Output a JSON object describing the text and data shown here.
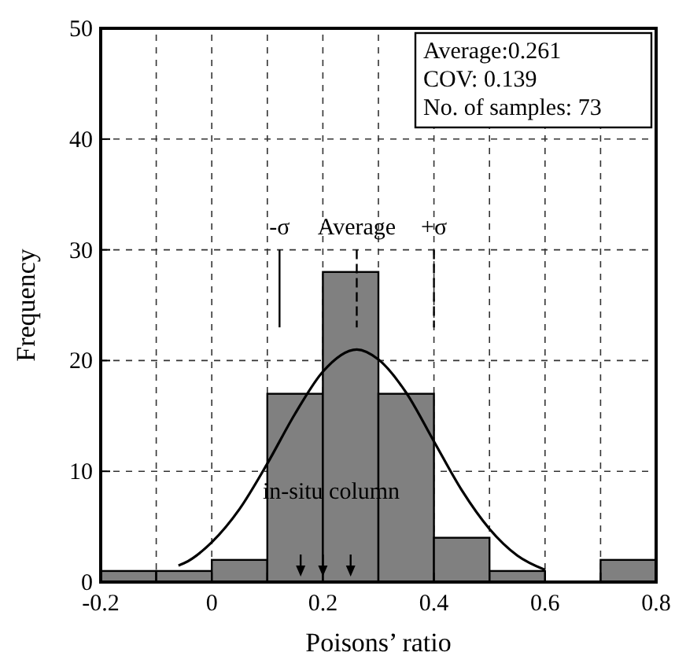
{
  "chart_data": {
    "type": "histogram",
    "xlabel": "Poisons’ ratio",
    "ylabel": "Frequency",
    "bins": [
      -0.2,
      -0.1,
      0,
      0.1,
      0.2,
      0.3,
      0.4,
      0.5,
      0.6,
      0.7,
      0.8
    ],
    "values": [
      1,
      1,
      2,
      17,
      28,
      17,
      4,
      1,
      0,
      2
    ],
    "color": "#808080",
    "series": [
      {
        "type": "line",
        "color": "#000000",
        "x": [
          -0.06,
          -0.05,
          0,
          0.05,
          0.1,
          0.15,
          0.2,
          0.261,
          0.3,
          0.35,
          0.4,
          0.45,
          0.5,
          0.55,
          0.6
        ],
        "values": [
          1.5,
          1.7,
          3.6,
          6.6,
          10.7,
          15.2,
          19,
          21,
          20.1,
          17.1,
          12.7,
          8.3,
          4.8,
          2.4,
          1.1
        ]
      },
      {
        "type": "scatter",
        "color": "#000000",
        "marker": "triangle",
        "x": [
          0.16,
          0.2,
          0.25
        ],
        "values": [
          1.5,
          1.5,
          1.5
        ]
      }
    ],
    "xlim": [
      -0.2,
      0.8
    ],
    "ylim": [
      0,
      50
    ],
    "xticks": [
      -0.2,
      {
        "value": -0.1,
        "label": null
      },
      0,
      {
        "value": 0.1,
        "label": null
      },
      0.2,
      {
        "value": 0.3,
        "label": null
      },
      0.4,
      {
        "value": 0.5,
        "label": null
      },
      0.6,
      {
        "value": 0.7,
        "label": null
      },
      0.8
    ],
    "yticks": [
      0,
      10,
      20,
      30,
      40,
      50
    ],
    "grid": true,
    "annotations": [
      "Average:0.261",
      "COV: 0.139",
      "No. of samples: 73",
      "in-situ column"
    ],
    "ref_lines": [
      {
        "axis": "x",
        "value": 0.122,
        "label": "-σ",
        "line_style": "solid"
      },
      {
        "axis": "x",
        "value": 0.261,
        "label": "Average",
        "line_style": "dashed"
      },
      {
        "axis": "x",
        "value": 0.4,
        "label": "+σ",
        "line_style": "dashed"
      }
    ]
  }
}
